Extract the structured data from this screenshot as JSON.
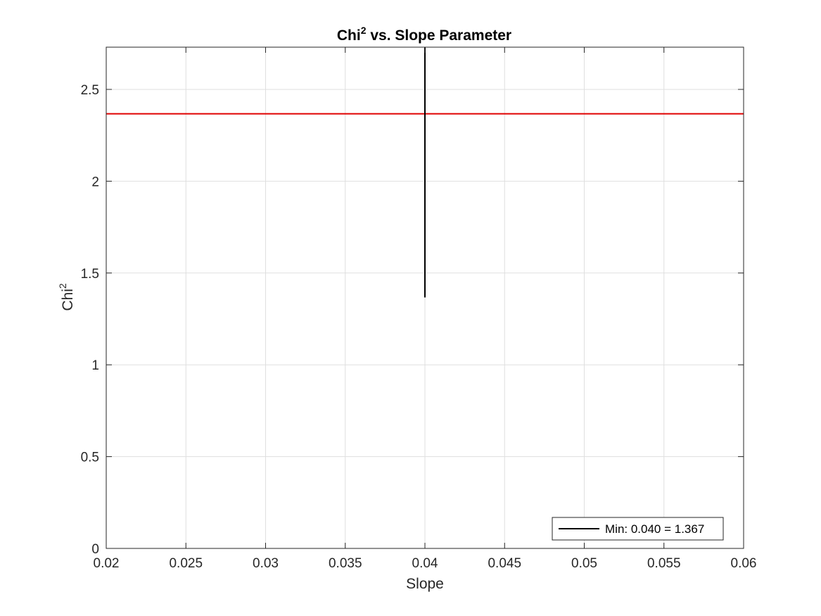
{
  "chart_data": {
    "type": "line",
    "title": {
      "base": "Chi",
      "sup": "2",
      "rest": " vs. Slope Parameter"
    },
    "xlabel": "Slope",
    "ylabel": {
      "base": "Chi",
      "sup": "2"
    },
    "xlim": [
      0.02,
      0.06
    ],
    "ylim": [
      0,
      2.73
    ],
    "x_ticks": [
      0.02,
      0.025,
      0.03,
      0.035,
      0.04,
      0.045,
      0.05,
      0.055,
      0.06
    ],
    "x_tick_labels": [
      "0.02",
      "0.025",
      "0.03",
      "0.035",
      "0.04",
      "0.045",
      "0.05",
      "0.055",
      "0.06"
    ],
    "y_ticks": [
      0,
      0.5,
      1,
      1.5,
      2,
      2.5
    ],
    "y_tick_labels": [
      "0",
      "0.5",
      "1",
      "1.5",
      "2",
      "2.5"
    ],
    "grid": true,
    "legend_placement": "bottom-right",
    "series": [
      {
        "name": "Min: 0.040 = 1.367",
        "color": "#000000",
        "x": [
          0.04,
          0.04
        ],
        "y": [
          1.367,
          2.73
        ]
      }
    ],
    "reference_lines": [
      {
        "orientation": "horizontal",
        "y": 2.367,
        "color": "#e00000"
      }
    ]
  }
}
